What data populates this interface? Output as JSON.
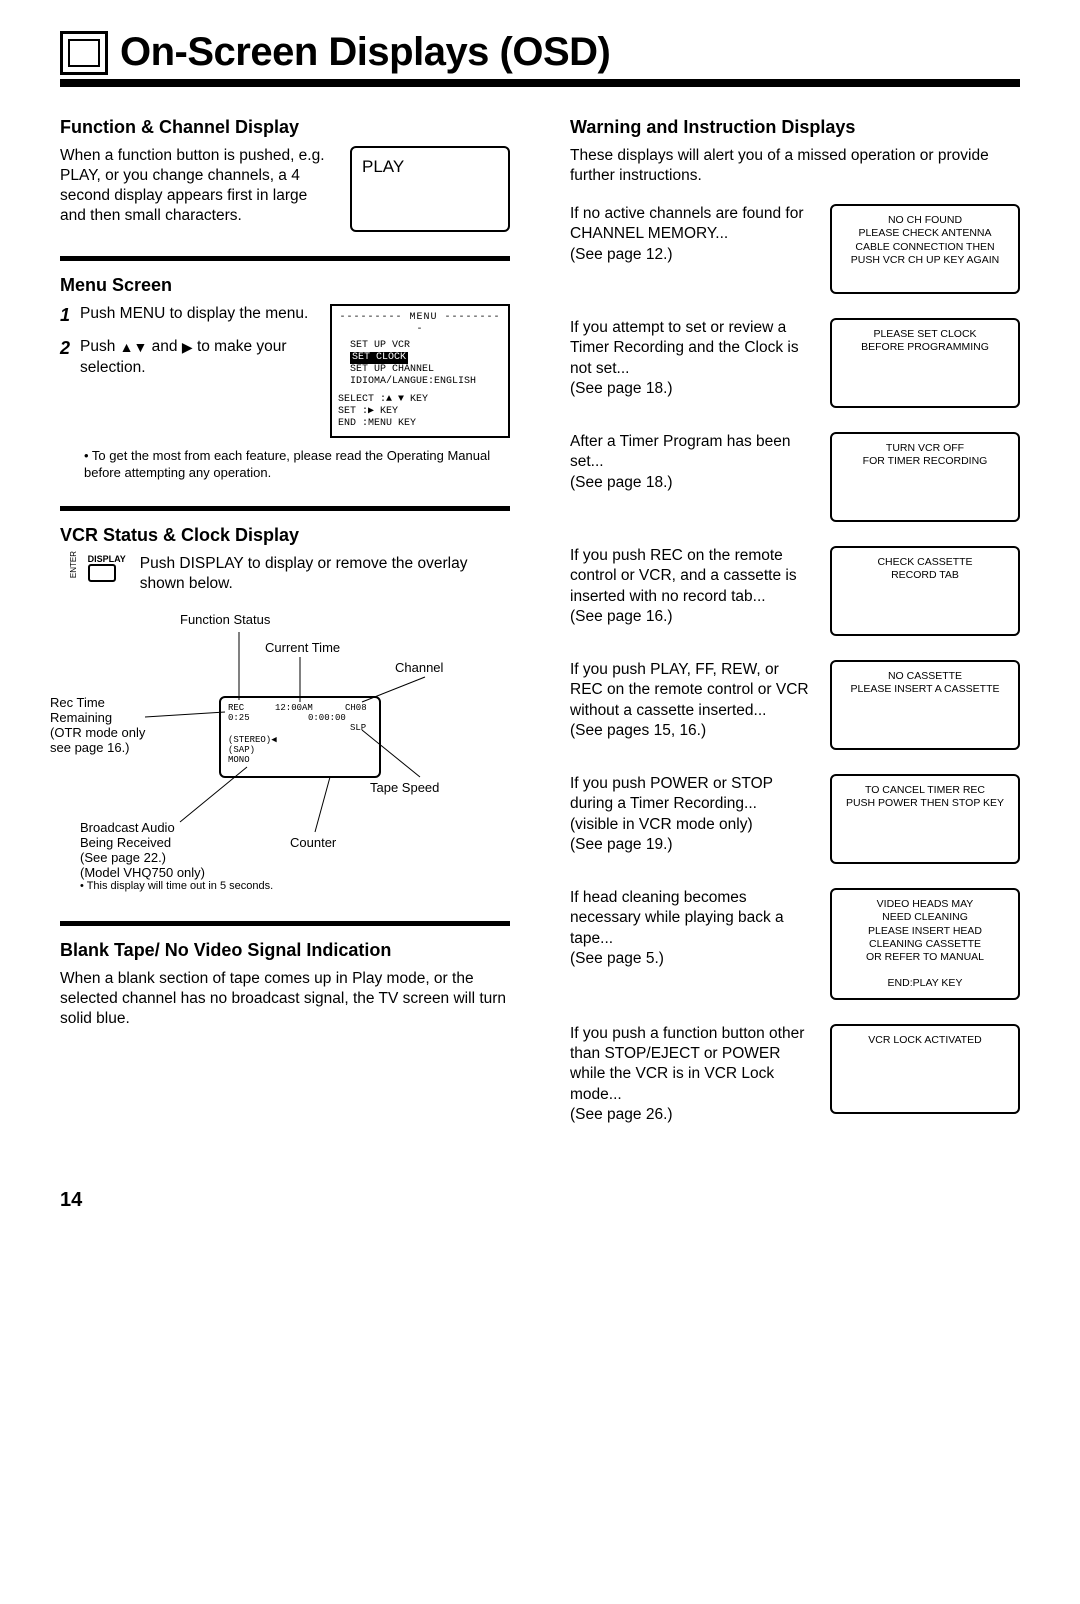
{
  "header": {
    "title": "On-Screen Displays (OSD)"
  },
  "left": {
    "func": {
      "heading": "Function & Channel Display",
      "text": "When a function button is pushed, e.g. PLAY, or you change channels, a 4 second display appears first in large and then small characters.",
      "box": "PLAY"
    },
    "menu": {
      "heading": "Menu Screen",
      "step1": "Push MENU to display the menu.",
      "step2_pre": "Push ",
      "step2_mid": " and ",
      "step2_post": " to make your selection.",
      "box_title": "--------- MENU ---------",
      "box_l1": "SET UP VCR",
      "box_l2": "SET CLOCK",
      "box_l3": "SET UP CHANNEL",
      "box_l4": "IDIOMA/LANGUE:ENGLISH",
      "box_l5": "SELECT :▲ ▼ KEY",
      "box_l6": "SET    :▶ KEY",
      "box_l7": "END    :MENU KEY",
      "note": "• To get the most from each feature, please read the Operating Manual before attempting any operation."
    },
    "status": {
      "heading": "VCR Status & Clock Display",
      "text": "Push DISPLAY to display or remove the overlay shown below.",
      "icon_label": "DISPLAY",
      "labels": {
        "func_status": "Function Status",
        "cur_time": "Current Time",
        "channel": "Channel",
        "rectime": "Rec Time\nRemaining\n(OTR mode only\nsee page 16.)",
        "tape_speed": "Tape Speed",
        "counter": "Counter",
        "audio": "Broadcast Audio\nBeing Received\n(See page 22.)\n(Model VHQ750 only)",
        "timeout": "• This display will time\n   out in 5 seconds."
      },
      "box_l1a": "REC",
      "box_l1b": "12:00AM",
      "box_l1c": "CH08",
      "box_l2a": "0:25",
      "box_l2b": "0:00:00",
      "box_l3": "SLP",
      "box_l4a": "(STEREO)◀",
      "box_l4b": "(SAP)",
      "box_l4c": "MONO"
    },
    "blank": {
      "heading": "Blank Tape/ No Video Signal Indication",
      "text": "When a blank section of tape comes up in Play mode, or the selected channel has no broadcast signal, the TV screen will turn solid blue."
    }
  },
  "right": {
    "heading": "Warning and Instruction Displays",
    "intro": "These displays will alert you of a missed operation or provide further instructions.",
    "items": [
      {
        "desc": "If no active channels are found for CHANNEL MEMORY...\n(See page 12.)",
        "box": "NO CH FOUND\nPLEASE CHECK ANTENNA\nCABLE CONNECTION THEN\nPUSH VCR CH UP KEY AGAIN"
      },
      {
        "desc": "If you attempt to set or review a Timer Recording and the Clock is not set...\n(See page 18.)",
        "box": "PLEASE SET CLOCK\nBEFORE PROGRAMMING"
      },
      {
        "desc": "After a Timer Program has been set...\n(See page 18.)",
        "box": "TURN VCR OFF\nFOR TIMER RECORDING"
      },
      {
        "desc": "If you push REC on the remote control or VCR, and a cassette is inserted with no record tab...\n(See page 16.)",
        "box": "CHECK CASSETTE\nRECORD TAB"
      },
      {
        "desc": "If you push PLAY, FF, REW, or REC on the remote control or VCR without a cassette inserted...\n(See pages 15, 16.)",
        "box": "NO CASSETTE\nPLEASE INSERT A CASSETTE"
      },
      {
        "desc": "If you push POWER or STOP during a Timer Recording...\n(visible in VCR mode only)\n(See page 19.)",
        "box": "TO CANCEL TIMER REC\nPUSH POWER THEN STOP KEY"
      },
      {
        "desc": "If head cleaning becomes necessary while playing back a tape...\n(See page 5.)",
        "box": "VIDEO HEADS MAY\nNEED CLEANING\nPLEASE INSERT HEAD\nCLEANING CASSETTE\nOR REFER TO MANUAL\n\nEND:PLAY KEY"
      },
      {
        "desc": "If you push a function button other than STOP/EJECT or POWER while the VCR is in VCR Lock mode...\n(See page 26.)",
        "box": "VCR LOCK ACTIVATED"
      }
    ]
  },
  "page_number": "14"
}
